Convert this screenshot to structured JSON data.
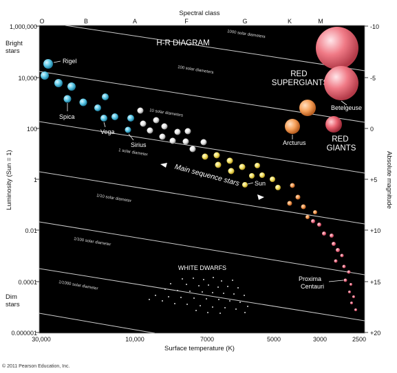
{
  "header": {
    "spectral_class": "Spectral class"
  },
  "spectral_classes": [
    {
      "label": "O"
    },
    {
      "label": "B"
    },
    {
      "label": "A"
    },
    {
      "label": "F"
    },
    {
      "label": "G"
    },
    {
      "label": "K"
    },
    {
      "label": "M"
    }
  ],
  "title": "H-R DIAGRAM",
  "left_axis": {
    "label": "Luminosity (Sun = 1)",
    "bright": "Bright\nstars",
    "dim": "Dim\nstars",
    "ticks": [
      {
        "label": "1,000,000"
      },
      {
        "label": "10,000"
      },
      {
        "label": "100"
      },
      {
        "label": "1"
      },
      {
        "label": "0.01"
      },
      {
        "label": "0.0001"
      },
      {
        "label": "0.000001"
      }
    ]
  },
  "right_axis": {
    "label": "Absolute magnitude",
    "ticks": [
      {
        "label": "-10"
      },
      {
        "label": "-5"
      },
      {
        "label": "0"
      },
      {
        "label": "+5"
      },
      {
        "label": "+10"
      },
      {
        "label": "+15"
      },
      {
        "label": "+20"
      }
    ]
  },
  "bottom_axis": {
    "label": "Surface temperature (K)",
    "ticks": [
      {
        "label": "30,000"
      },
      {
        "label": "10,000"
      },
      {
        "label": "7000"
      },
      {
        "label": "5000"
      },
      {
        "label": "3000"
      },
      {
        "label": "2500"
      }
    ]
  },
  "diameter_lines": [
    {
      "label": "1000 solar diameters"
    },
    {
      "label": "100 solar diameters"
    },
    {
      "label": "10 solar diameters"
    },
    {
      "label": "1 solar diameter"
    },
    {
      "label": "1/10 solar diameter"
    },
    {
      "label": "1/100 solar diameter"
    },
    {
      "label": "1/1000 solar diameter"
    }
  ],
  "regions": {
    "red_supergiants": "RED\nSUPERGIANTS",
    "red_giants": "RED\nGIANTS",
    "white_dwarfs": "WHITE DWARFS",
    "main_sequence": "Main sequence stars"
  },
  "stars": {
    "rigel": "Rigel",
    "spica": "Spica",
    "vega": "Vega",
    "sirius": "Sirius",
    "sun": "Sun",
    "arcturus": "Arcturus",
    "betelgeuse": "Betelgeuse",
    "proxima": "Proxima\nCentauri"
  },
  "copyright": "© 2011 Pearson Education, Inc.",
  "colors": {
    "background": "#000000",
    "blue": "#5ec8e6",
    "white": "#f2f2f2",
    "yellow": "#f3e36a",
    "orange": "#f5a05a",
    "red": "#e8606e",
    "pink": "#f07c90"
  }
}
